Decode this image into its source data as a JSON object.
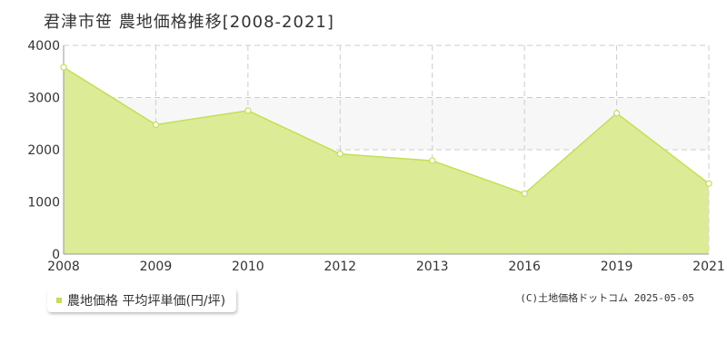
{
  "page": {
    "title": "君津市笹  農地価格推移[2008-2021]",
    "source": "(C)土地価格ドットコム 2025-05-05"
  },
  "colors": {
    "fill": "#dcec96",
    "line": "#c2e055",
    "band": "#f7f7f7",
    "grid": "#cccccc",
    "axis": "#999999",
    "marker_fill": "#ffffff"
  },
  "chart_data": {
    "type": "area",
    "title": "君津市笹  農地価格推移[2008-2021]",
    "xlabel": "",
    "ylabel": "",
    "categories": [
      "2008",
      "2009",
      "2010",
      "2012",
      "2013",
      "2016",
      "2019",
      "2021"
    ],
    "series": [
      {
        "name": "農地価格 平均坪単価(円/坪)",
        "values": [
          3580,
          2480,
          2750,
          1920,
          1790,
          1160,
          2700,
          1350
        ]
      }
    ],
    "ylim": [
      0,
      4000
    ],
    "yticks": [
      "0",
      "1000",
      "2000",
      "3000",
      "4000"
    ],
    "grid": true,
    "legend": "bottom-left"
  },
  "legend": {
    "label": "農地価格 平均坪単価(円/坪)"
  }
}
